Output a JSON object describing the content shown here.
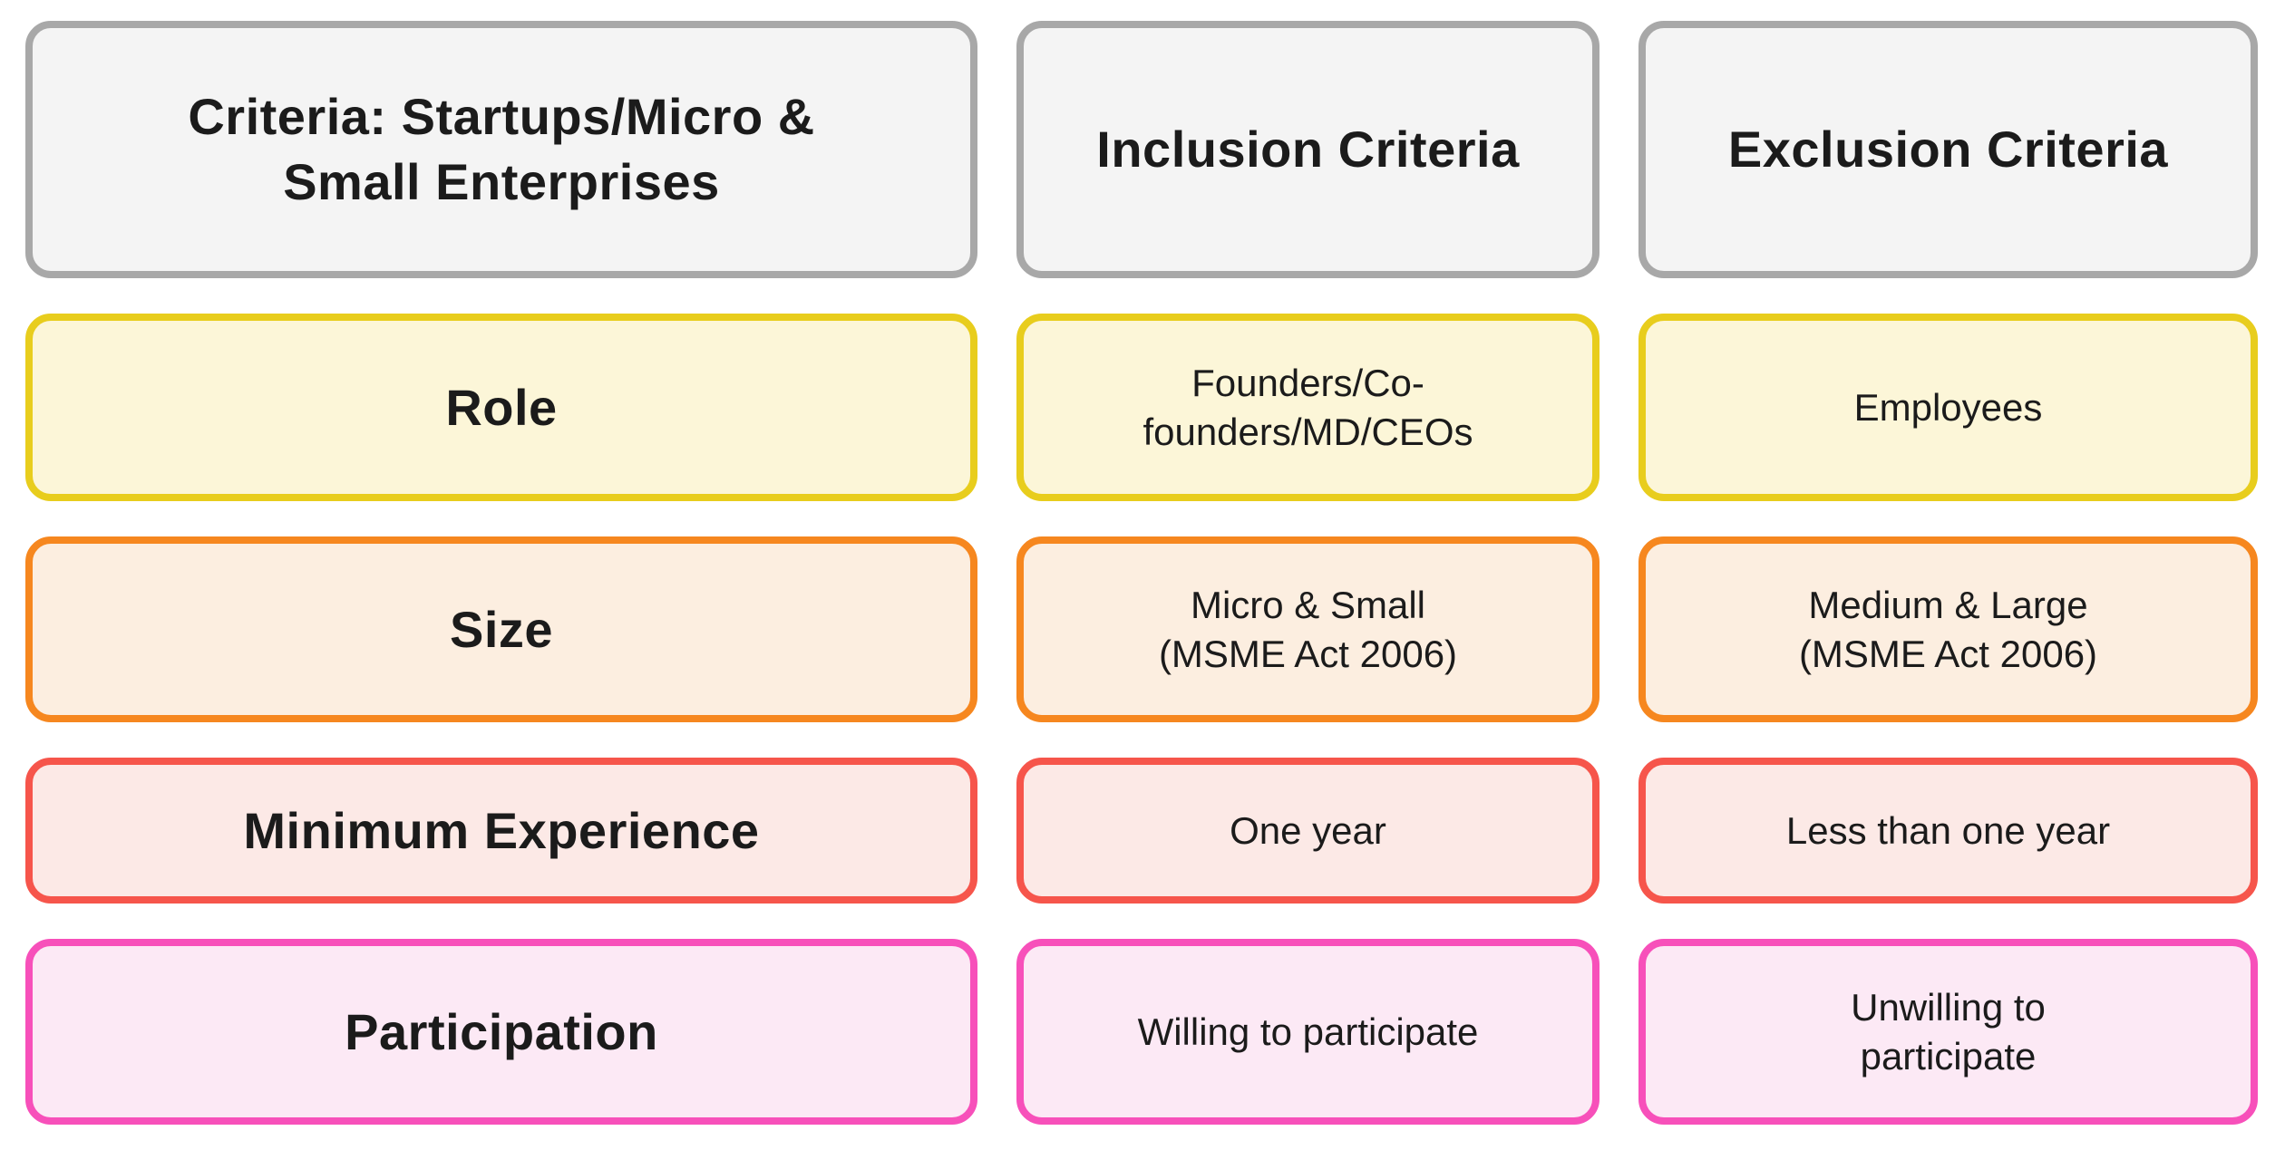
{
  "header": {
    "criteria": "Criteria: Startups/Micro &\nSmall Enterprises",
    "inclusion": "Inclusion Criteria",
    "exclusion": "Exclusion Criteria"
  },
  "rows": [
    {
      "label": "Role",
      "inclusion": "Founders/Co-\nfounders/MD/CEOs",
      "exclusion": "Employees"
    },
    {
      "label": "Size",
      "inclusion": "Micro & Small\n(MSME Act 2006)",
      "exclusion": "Medium & Large\n(MSME Act 2006)"
    },
    {
      "label": "Minimum Experience",
      "inclusion": "One year",
      "exclusion": "Less than one year"
    },
    {
      "label": "Participation",
      "inclusion": "Willing to participate",
      "exclusion": "Unwilling to\nparticipate"
    }
  ],
  "colors": {
    "palette": [
      {
        "name": "gray-header",
        "border": "#a8a8a8",
        "fill": "#f4f4f4"
      },
      {
        "name": "yellow-role",
        "border": "#e8cd1d",
        "fill": "#fcf6d8"
      },
      {
        "name": "orange-size",
        "border": "#f6871f",
        "fill": "#fceee0"
      },
      {
        "name": "red-experience",
        "border": "#f6554b",
        "fill": "#fce9e6"
      },
      {
        "name": "pink-participation",
        "border": "#f750ba",
        "fill": "#fce9f5"
      }
    ],
    "text": "#1b1b1b",
    "page_background": "#ffffff"
  }
}
